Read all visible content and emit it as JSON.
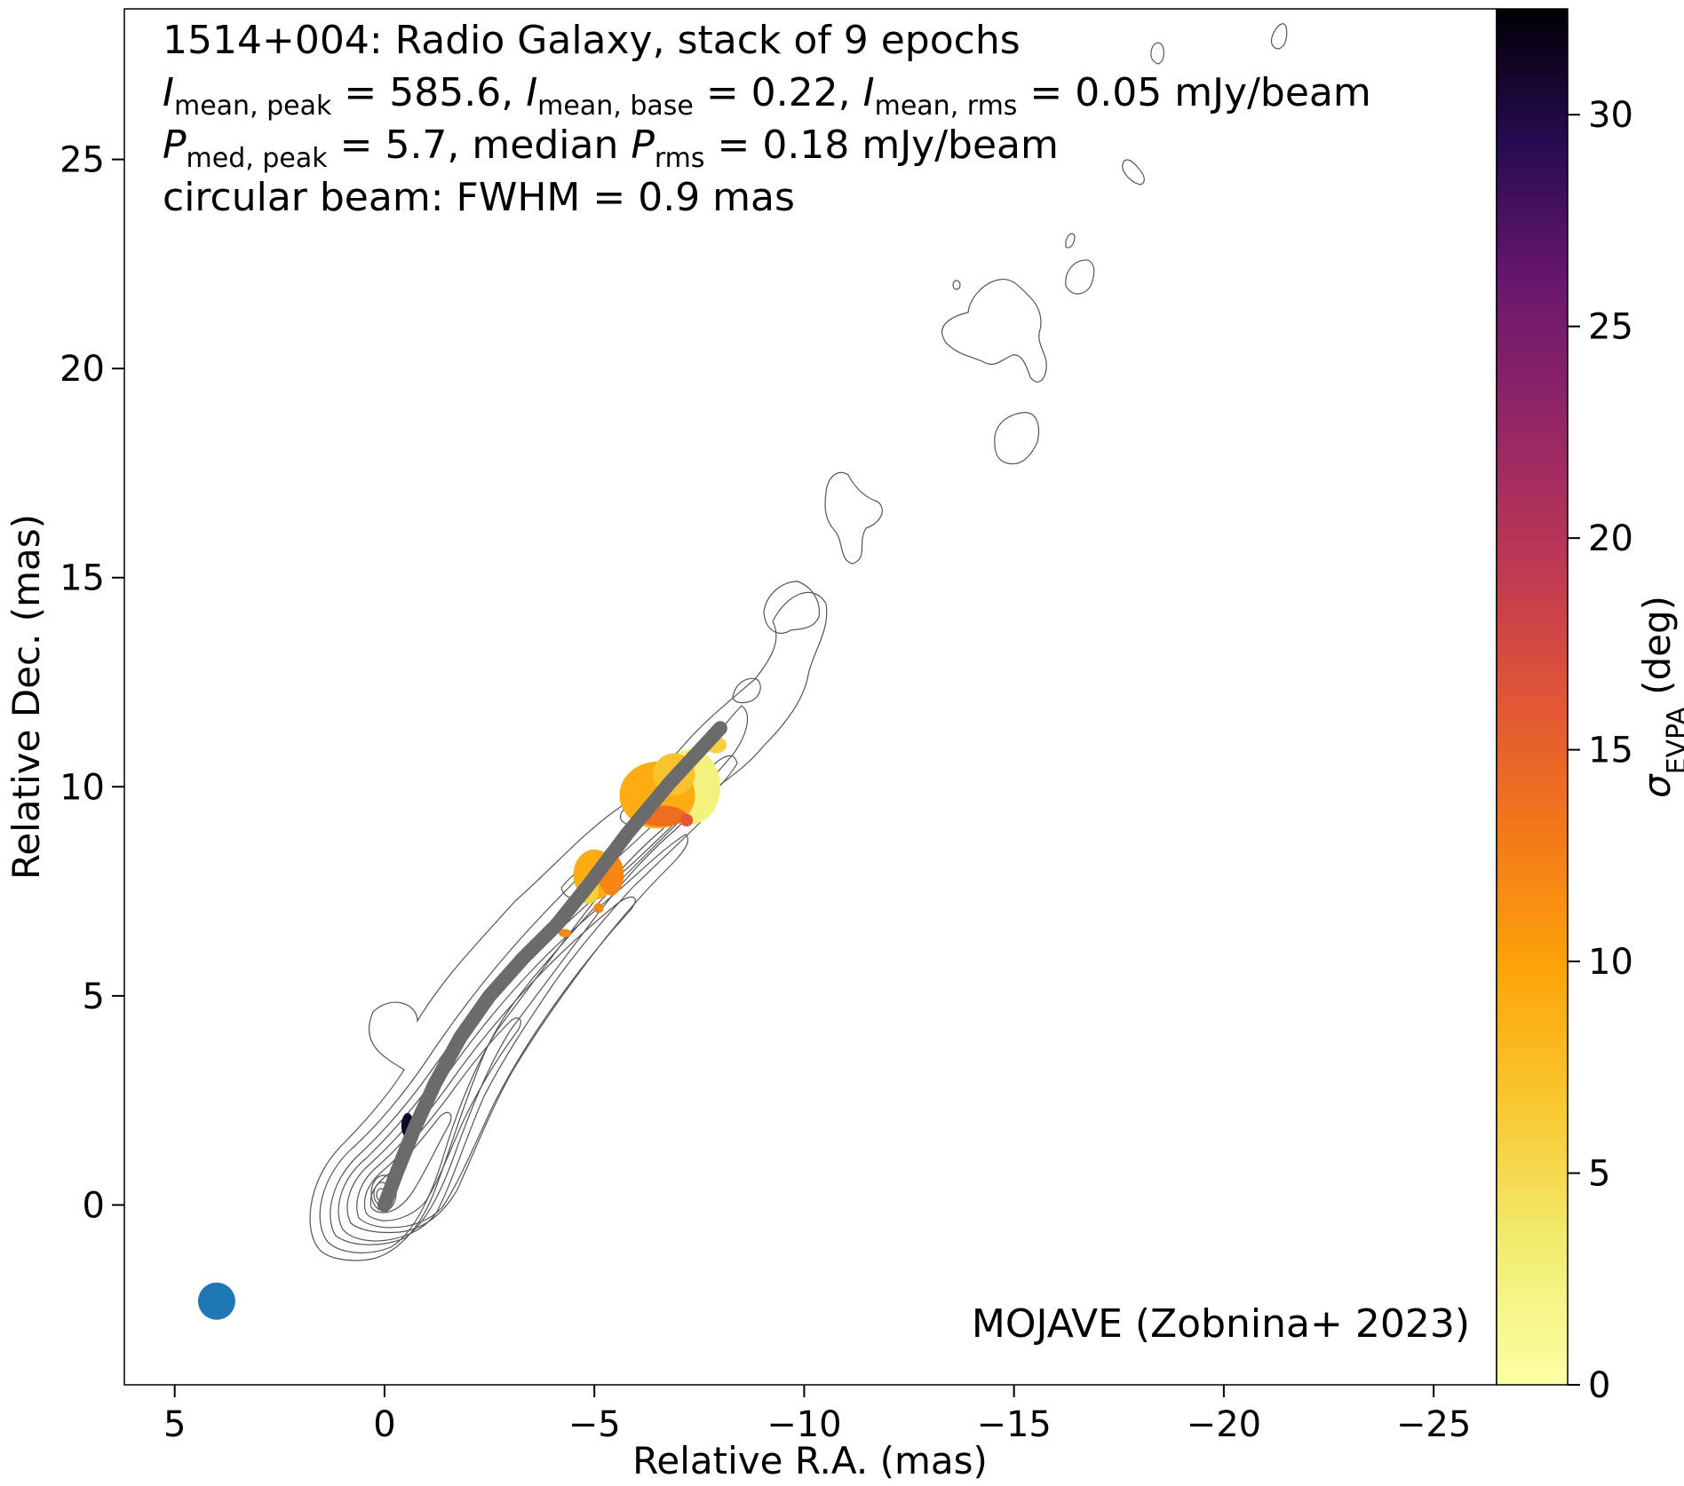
{
  "chart_data": {
    "type": "scatter",
    "info_lines": [
      {
        "parts": [
          {
            "t": "1514+004: Radio Galaxy, stack of 9 epochs"
          }
        ]
      },
      {
        "parts": [
          {
            "t": "I",
            "i": true
          },
          {
            "t": "mean, peak",
            "sub": true
          },
          {
            "t": " = 585.6, "
          },
          {
            "t": "I",
            "i": true
          },
          {
            "t": "mean, base",
            "sub": true
          },
          {
            "t": " = 0.22, "
          },
          {
            "t": "I",
            "i": true
          },
          {
            "t": "mean, rms",
            "sub": true
          },
          {
            "t": " = 0.05 mJy/beam"
          }
        ]
      },
      {
        "parts": [
          {
            "t": "P",
            "i": true
          },
          {
            "t": "med, peak",
            "sub": true
          },
          {
            "t": " = 5.7, median "
          },
          {
            "t": "P",
            "i": true
          },
          {
            "t": "rms",
            "sub": true
          },
          {
            "t": " = 0.18 mJy/beam"
          }
        ]
      },
      {
        "parts": [
          {
            "t": "circular beam: FWHM = 0.9 mas"
          }
        ]
      }
    ],
    "credit": "MOJAVE (Zobnina+ 2023)",
    "xlabel": "Relative R.A. (mas)",
    "ylabel": "Relative Dec. (mas)",
    "xlim": [
      6.2,
      -26.5
    ],
    "ylim": [
      -4.3,
      28.6
    ],
    "xticks": [
      5,
      0,
      -5,
      -10,
      -15,
      -20,
      -25
    ],
    "yticks": [
      0,
      5,
      10,
      15,
      20,
      25
    ],
    "colorbar": {
      "label_main": "σ",
      "label_sub": "EVPA",
      "label_unit": " (deg)",
      "colormap": "inferno_r",
      "range": [
        0,
        32.5
      ],
      "ticks": [
        0,
        5,
        10,
        15,
        20,
        25,
        30
      ]
    },
    "beam": {
      "x": 4.0,
      "y": -2.3,
      "fwhm": 0.9,
      "color": "#1f77b4"
    },
    "ridgeline": {
      "color": "#6b6b6b",
      "points": [
        [
          0,
          0
        ],
        [
          -0.3,
          0.8
        ],
        [
          -0.7,
          1.8
        ],
        [
          -1.2,
          2.9
        ],
        [
          -1.8,
          4.0
        ],
        [
          -2.5,
          5.0
        ],
        [
          -3.3,
          5.9
        ],
        [
          -4.1,
          6.7
        ],
        [
          -4.9,
          7.7
        ],
        [
          -5.8,
          8.9
        ],
        [
          -6.8,
          10.1
        ],
        [
          -8.0,
          11.4
        ]
      ]
    },
    "evpa_sigma_patches": [
      {
        "x": -7.3,
        "y": 10.0,
        "rx": 0.7,
        "ry": 0.9,
        "sigma": 2.5
      },
      {
        "x": -6.5,
        "y": 9.8,
        "rx": 0.9,
        "ry": 0.8,
        "sigma": 9
      },
      {
        "x": -6.9,
        "y": 10.3,
        "rx": 0.5,
        "ry": 0.5,
        "sigma": 7
      },
      {
        "x": -6.6,
        "y": 9.3,
        "rx": 0.6,
        "ry": 0.25,
        "sigma": 14
      },
      {
        "x": -5.0,
        "y": 7.9,
        "rx": 0.5,
        "ry": 0.6,
        "sigma": 9
      },
      {
        "x": -5.4,
        "y": 7.9,
        "rx": 0.3,
        "ry": 0.5,
        "sigma": 12
      },
      {
        "x": -4.85,
        "y": 7.5,
        "rx": 0.25,
        "ry": 0.3,
        "sigma": 6
      },
      {
        "x": -7.9,
        "y": 11.0,
        "rx": 0.25,
        "ry": 0.2,
        "sigma": 6
      },
      {
        "x": -4.3,
        "y": 6.5,
        "rx": 0.15,
        "ry": 0.1,
        "sigma": 12
      },
      {
        "x": -5.1,
        "y": 7.1,
        "rx": 0.12,
        "ry": 0.12,
        "sigma": 12
      },
      {
        "x": -7.2,
        "y": 9.2,
        "rx": 0.15,
        "ry": 0.15,
        "sigma": 16
      },
      {
        "x": -0.55,
        "y": 1.9,
        "rx": 0.15,
        "ry": 0.3,
        "sigma": 31
      },
      {
        "x": -0.05,
        "y": 0.35,
        "rx": 0.1,
        "ry": 0.1,
        "sigma": 12
      }
    ]
  }
}
